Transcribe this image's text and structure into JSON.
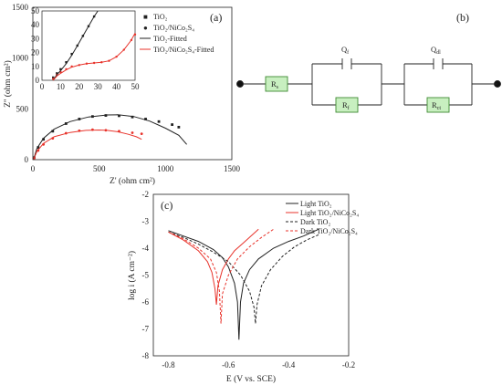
{
  "colors": {
    "black": "#222222",
    "red": "#e8332b",
    "resistor_fill": "#c8efc0",
    "resistor_edge": "#3f8a33",
    "axis": "#222222"
  },
  "panel_a": {
    "label": "(a)",
    "xlabel": "Z' (ohm cm²)",
    "ylabel": "Z'' (ohm cm²)",
    "xticks": [
      "0",
      "500",
      "1000",
      "1500"
    ],
    "yticks": [
      "0",
      "500",
      "1000",
      "1500"
    ],
    "legend": [
      "TiO₂",
      "TiO₂/NiCo₂S₄",
      "TiO₂-Fitted",
      "TiO₂/NiCo₂S₄-Fitted"
    ],
    "inset_xticks": [
      "0",
      "10",
      "20",
      "30",
      "40",
      "50"
    ],
    "inset_yticks": [
      "0",
      "10",
      "20",
      "30",
      "40",
      "50"
    ]
  },
  "panel_b": {
    "label": "(b)",
    "elements": {
      "rs": "R",
      "rs_sub": "s",
      "qf": "Q",
      "qf_sub": "f",
      "rf": "R",
      "rf_sub": "f",
      "qdl": "Q",
      "qdl_sub": "dl",
      "rct": "R",
      "rct_sub": "ct"
    }
  },
  "panel_c": {
    "label": "(c)",
    "xlabel": "E (V vs. SCE)",
    "ylabel": "log i (A cm⁻²)",
    "xticks": [
      "-0.8",
      "-0.6",
      "-0.4",
      "-0.2"
    ],
    "yticks": [
      "-2",
      "-3",
      "-4",
      "-5",
      "-6",
      "-7",
      "-8"
    ],
    "legend": [
      "Light TiO₂",
      "Light TiO₂/NiCo₂S₄",
      "Dark TiO₂",
      "Dark TiO₂/NiCo₂S₄"
    ]
  },
  "chart_data": [
    {
      "type": "scatter",
      "panel": "a",
      "xlabel": "Z' (ohm cm²)",
      "ylabel": "Z'' (ohm cm²)",
      "xlim": [
        0,
        1500
      ],
      "ylim": [
        0,
        1500
      ],
      "series": [
        {
          "name": "TiO₂",
          "color": "#222222",
          "style": "markers",
          "x": [
            10,
            40,
            80,
            150,
            250,
            350,
            450,
            550,
            650,
            750,
            850,
            950,
            1050,
            1100
          ],
          "y": [
            20,
            120,
            200,
            280,
            355,
            400,
            425,
            435,
            432,
            420,
            400,
            375,
            345,
            320
          ]
        },
        {
          "name": "TiO₂/NiCo₂S₄",
          "color": "#e8332b",
          "style": "markers",
          "x": [
            10,
            40,
            80,
            150,
            250,
            350,
            450,
            550,
            650,
            750,
            820
          ],
          "y": [
            15,
            90,
            150,
            210,
            260,
            285,
            295,
            290,
            280,
            265,
            255
          ]
        },
        {
          "name": "TiO₂-Fitted",
          "color": "#222222",
          "style": "line",
          "x": [
            5,
            30,
            80,
            160,
            280,
            420,
            560,
            640,
            760,
            880,
            1000,
            1100,
            1160
          ],
          "y": [
            0,
            110,
            210,
            300,
            375,
            420,
            440,
            442,
            425,
            380,
            310,
            240,
            150
          ]
        },
        {
          "name": "TiO₂/NiCo₂S₄-Fitted",
          "color": "#e8332b",
          "style": "line",
          "x": [
            5,
            30,
            80,
            160,
            280,
            400,
            500,
            560,
            640,
            720,
            780,
            820
          ],
          "y": [
            0,
            80,
            160,
            225,
            268,
            288,
            292,
            288,
            275,
            250,
            225,
            200
          ]
        }
      ]
    },
    {
      "type": "scatter",
      "panel": "a-inset",
      "xlim": [
        0,
        50
      ],
      "ylim": [
        0,
        50
      ],
      "series": [
        {
          "name": "TiO₂",
          "color": "#222222",
          "style": "markers",
          "x": [
            6,
            8,
            10,
            13,
            16,
            19,
            22,
            25,
            28
          ],
          "y": [
            2,
            5,
            8,
            13,
            19,
            25,
            32,
            39,
            46
          ]
        },
        {
          "name": "TiO₂/NiCo₂S₄",
          "color": "#e8332b",
          "style": "markers",
          "x": [
            6,
            8,
            10,
            13,
            16,
            20,
            24,
            28,
            32,
            36,
            40,
            44,
            48,
            50
          ],
          "y": [
            1,
            4,
            6,
            8,
            10,
            11,
            12,
            12.5,
            13,
            14,
            17,
            22,
            29,
            33
          ]
        },
        {
          "name": "TiO₂-Fitted",
          "color": "#222222",
          "style": "line",
          "x": [
            6,
            8,
            10,
            13,
            16,
            19,
            22,
            25,
            28,
            30
          ],
          "y": [
            0,
            4,
            7,
            12,
            18,
            25,
            32,
            39,
            46,
            50
          ]
        },
        {
          "name": "TiO₂/NiCo₂S₄-Fitted",
          "color": "#e8332b",
          "style": "line",
          "x": [
            6,
            8,
            10,
            13,
            16,
            20,
            24,
            28,
            32,
            36,
            40,
            44,
            48,
            50
          ],
          "y": [
            0,
            3,
            5,
            7.5,
            9.5,
            11,
            12,
            12.5,
            13,
            14,
            17,
            22,
            29,
            34
          ]
        }
      ]
    },
    {
      "type": "line",
      "panel": "c",
      "xlabel": "E (V vs. SCE)",
      "ylabel": "log i (A cm⁻²)",
      "xlim": [
        -0.85,
        -0.2
      ],
      "ylim": [
        -8,
        -2
      ],
      "series": [
        {
          "name": "Light TiO₂",
          "color": "#222222",
          "dash": "solid",
          "x": [
            -0.8,
            -0.75,
            -0.7,
            -0.65,
            -0.62,
            -0.6,
            -0.58,
            -0.57,
            -0.565,
            -0.56,
            -0.55,
            -0.53,
            -0.5,
            -0.45,
            -0.4,
            -0.35,
            -0.3
          ],
          "y": [
            -3.35,
            -3.55,
            -3.75,
            -4.05,
            -4.35,
            -4.7,
            -5.3,
            -6.0,
            -7.4,
            -6.0,
            -5.3,
            -4.8,
            -4.4,
            -4.0,
            -3.75,
            -3.55,
            -3.3
          ]
        },
        {
          "name": "Light TiO₂/NiCo₂S₄",
          "color": "#e8332b",
          "dash": "solid",
          "x": [
            -0.8,
            -0.75,
            -0.7,
            -0.67,
            -0.655,
            -0.645,
            -0.64,
            -0.635,
            -0.62,
            -0.6,
            -0.58,
            -0.55,
            -0.52,
            -0.5
          ],
          "y": [
            -3.4,
            -3.7,
            -4.1,
            -4.5,
            -4.9,
            -5.5,
            -6.1,
            -5.4,
            -4.8,
            -4.4,
            -4.1,
            -3.8,
            -3.5,
            -3.3
          ]
        },
        {
          "name": "Dark TiO₂",
          "color": "#222222",
          "dash": "dashed",
          "x": [
            -0.8,
            -0.75,
            -0.7,
            -0.65,
            -0.6,
            -0.56,
            -0.53,
            -0.515,
            -0.51,
            -0.505,
            -0.49,
            -0.46,
            -0.42,
            -0.38,
            -0.34,
            -0.3
          ],
          "y": [
            -3.4,
            -3.6,
            -3.85,
            -4.15,
            -4.5,
            -5.0,
            -5.6,
            -6.2,
            -6.8,
            -6.1,
            -5.4,
            -4.8,
            -4.3,
            -3.95,
            -3.7,
            -3.5
          ]
        },
        {
          "name": "Dark TiO₂/NiCo₂S₄",
          "color": "#e8332b",
          "dash": "dashed",
          "x": [
            -0.8,
            -0.75,
            -0.7,
            -0.66,
            -0.64,
            -0.63,
            -0.625,
            -0.62,
            -0.6,
            -0.57,
            -0.53,
            -0.49,
            -0.45
          ],
          "y": [
            -3.4,
            -3.65,
            -4.0,
            -4.4,
            -4.9,
            -5.6,
            -6.8,
            -5.7,
            -5.0,
            -4.4,
            -3.95,
            -3.6,
            -3.3
          ]
        }
      ]
    }
  ]
}
